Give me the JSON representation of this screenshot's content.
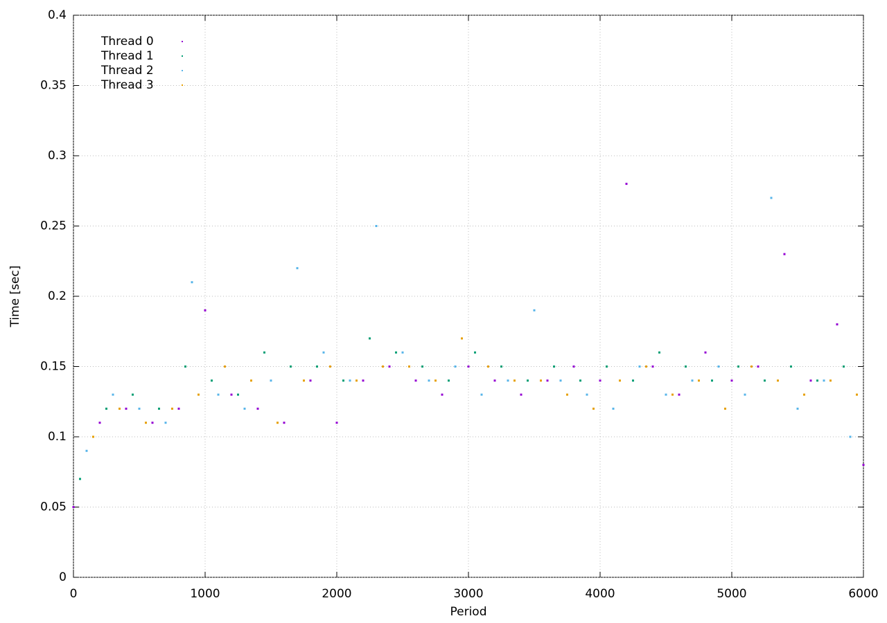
{
  "chart_data": {
    "type": "scatter",
    "xlabel": "Period",
    "ylabel": "Time [sec]",
    "xlim": [
      0,
      6000
    ],
    "ylim": [
      0,
      0.4
    ],
    "xticks": [
      0,
      1000,
      2000,
      3000,
      4000,
      5000,
      6000
    ],
    "yticks": [
      0,
      0.05,
      0.1,
      0.15,
      0.2,
      0.25,
      0.3,
      0.35,
      0.4
    ],
    "grid": true,
    "legend": "top-left",
    "series": [
      {
        "name": "Thread 0",
        "color": "#9400d3",
        "x": [
          0,
          200,
          400,
          600,
          800,
          1000,
          1200,
          1400,
          1600,
          1800,
          2000,
          2200,
          2400,
          2600,
          2800,
          3000,
          3200,
          3400,
          3600,
          3800,
          4000,
          4200,
          4400,
          4600,
          4800,
          5000,
          5200,
          5400,
          5600,
          5800,
          6000
        ],
        "values": [
          0.05,
          0.11,
          0.12,
          0.11,
          0.12,
          0.19,
          0.13,
          0.12,
          0.11,
          0.14,
          0.11,
          0.14,
          0.15,
          0.14,
          0.13,
          0.15,
          0.14,
          0.13,
          0.14,
          0.15,
          0.14,
          0.28,
          0.15,
          0.13,
          0.16,
          0.14,
          0.15,
          0.23,
          0.14,
          0.18,
          0.08
        ]
      },
      {
        "name": "Thread 1",
        "color": "#009e73",
        "x": [
          50,
          250,
          450,
          650,
          850,
          1050,
          1250,
          1450,
          1650,
          1850,
          2050,
          2250,
          2450,
          2650,
          2850,
          3050,
          3250,
          3450,
          3650,
          3850,
          4050,
          4250,
          4450,
          4650,
          4850,
          5050,
          5250,
          5450,
          5650,
          5850
        ],
        "values": [
          0.07,
          0.12,
          0.13,
          0.12,
          0.15,
          0.14,
          0.13,
          0.16,
          0.15,
          0.15,
          0.14,
          0.17,
          0.16,
          0.15,
          0.14,
          0.16,
          0.15,
          0.14,
          0.15,
          0.14,
          0.15,
          0.14,
          0.16,
          0.15,
          0.14,
          0.15,
          0.14,
          0.15,
          0.14,
          0.15
        ]
      },
      {
        "name": "Thread 2",
        "color": "#56b4e9",
        "x": [
          100,
          300,
          500,
          700,
          900,
          1100,
          1300,
          1500,
          1700,
          1900,
          2100,
          2300,
          2500,
          2700,
          2900,
          3100,
          3300,
          3500,
          3700,
          3900,
          4100,
          4300,
          4500,
          4700,
          4900,
          5100,
          5300,
          5500,
          5700,
          5900
        ],
        "values": [
          0.09,
          0.13,
          0.12,
          0.11,
          0.21,
          0.13,
          0.12,
          0.14,
          0.22,
          0.16,
          0.14,
          0.25,
          0.16,
          0.14,
          0.15,
          0.13,
          0.14,
          0.19,
          0.14,
          0.13,
          0.12,
          0.15,
          0.13,
          0.14,
          0.15,
          0.13,
          0.27,
          0.12,
          0.14,
          0.1
        ]
      },
      {
        "name": "Thread 3",
        "color": "#e69f00",
        "x": [
          150,
          350,
          550,
          750,
          950,
          1150,
          1350,
          1550,
          1750,
          1950,
          2150,
          2350,
          2550,
          2750,
          2950,
          3150,
          3350,
          3550,
          3750,
          3950,
          4150,
          4350,
          4550,
          4750,
          4950,
          5150,
          5350,
          5550,
          5750,
          5950
        ],
        "values": [
          0.1,
          0.12,
          0.11,
          0.12,
          0.13,
          0.15,
          0.14,
          0.11,
          0.14,
          0.15,
          0.14,
          0.15,
          0.15,
          0.14,
          0.17,
          0.15,
          0.14,
          0.14,
          0.13,
          0.12,
          0.14,
          0.15,
          0.13,
          0.14,
          0.12,
          0.15,
          0.14,
          0.13,
          0.14,
          0.13
        ]
      }
    ]
  }
}
